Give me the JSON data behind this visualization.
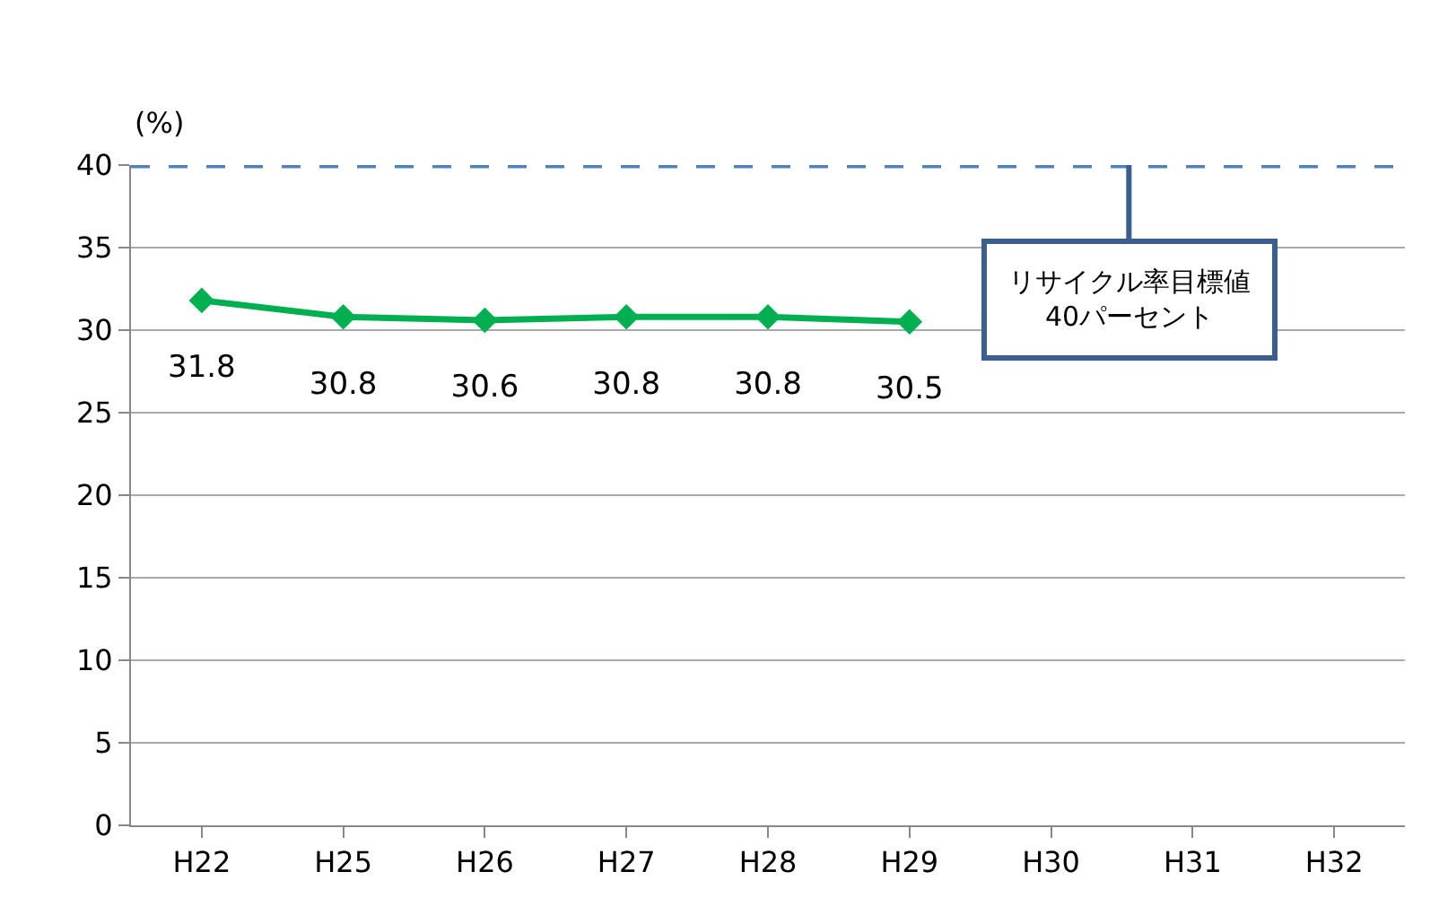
{
  "chart_data": {
    "type": "line",
    "ylabel": "(%)",
    "categories": [
      "H22",
      "H25",
      "H26",
      "H27",
      "H28",
      "H29",
      "H30",
      "H31",
      "H32"
    ],
    "series": [
      {
        "color": "#00b050",
        "values": [
          31.8,
          30.8,
          30.6,
          30.8,
          30.8,
          30.5,
          null,
          null,
          null
        ]
      }
    ],
    "ylim": [
      0,
      40
    ],
    "yticks": [
      0,
      5,
      10,
      15,
      20,
      25,
      30,
      35,
      40
    ],
    "ref_lines": [
      {
        "axis": "y",
        "value": 40,
        "label": "リサイクル率目標値\n40パーセント",
        "color": "#4f81bd",
        "line_style": "dashed"
      }
    ],
    "data_labels": true,
    "grid": "y",
    "marker": "diamond",
    "line_style": "solid",
    "legend": false
  }
}
